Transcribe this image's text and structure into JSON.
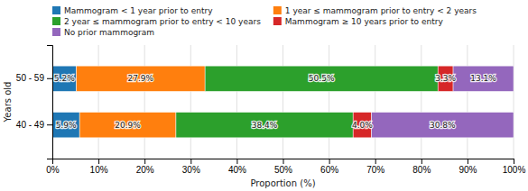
{
  "chart_data": {
    "type": "bar",
    "orientation": "horizontal",
    "stacked": true,
    "categories": [
      "40 - 49",
      "50 - 59"
    ],
    "series": [
      {
        "name": "Mammogram < 1 year prior to entry",
        "values": [
          5.9,
          5.2
        ],
        "value_labels": [
          "5.9%",
          "5.2%"
        ]
      },
      {
        "name": "1 year ≤ mammogram prior to entry < 2 years",
        "values": [
          20.9,
          27.9
        ],
        "value_labels": [
          "20.9%",
          "27.9%"
        ]
      },
      {
        "name": "2 year ≤ mammogram prior to entry < 10 years",
        "values": [
          38.4,
          50.5
        ],
        "value_labels": [
          "38.4%",
          "50.5%"
        ]
      },
      {
        "name": "Mammogram ≥ 10 years prior to entry",
        "values": [
          4.0,
          3.3
        ],
        "value_labels": [
          "4.0%",
          "3.3%"
        ]
      },
      {
        "name": "No prior mammogram",
        "values": [
          30.8,
          13.1
        ],
        "value_labels": [
          "30.8%",
          "13.1%"
        ]
      }
    ],
    "x_label": "Proportion (%)",
    "y_label": "Years old",
    "xlim": [
      0,
      100
    ],
    "xticks": [
      {
        "value": 0,
        "label": "0%"
      },
      {
        "value": 10,
        "label": "10%"
      },
      {
        "value": 20,
        "label": "20%"
      },
      {
        "value": 30,
        "label": "30%"
      },
      {
        "value": 40,
        "label": "40%"
      },
      {
        "value": 50,
        "label": "50%"
      },
      {
        "value": 60,
        "label": "60%"
      },
      {
        "value": 70,
        "label": "70%"
      },
      {
        "value": 80,
        "label": "80%"
      },
      {
        "value": 90,
        "label": "90%"
      },
      {
        "value": 100,
        "label": "100%"
      }
    ],
    "grid": true,
    "data_labels": true,
    "legend": "upper left"
  }
}
